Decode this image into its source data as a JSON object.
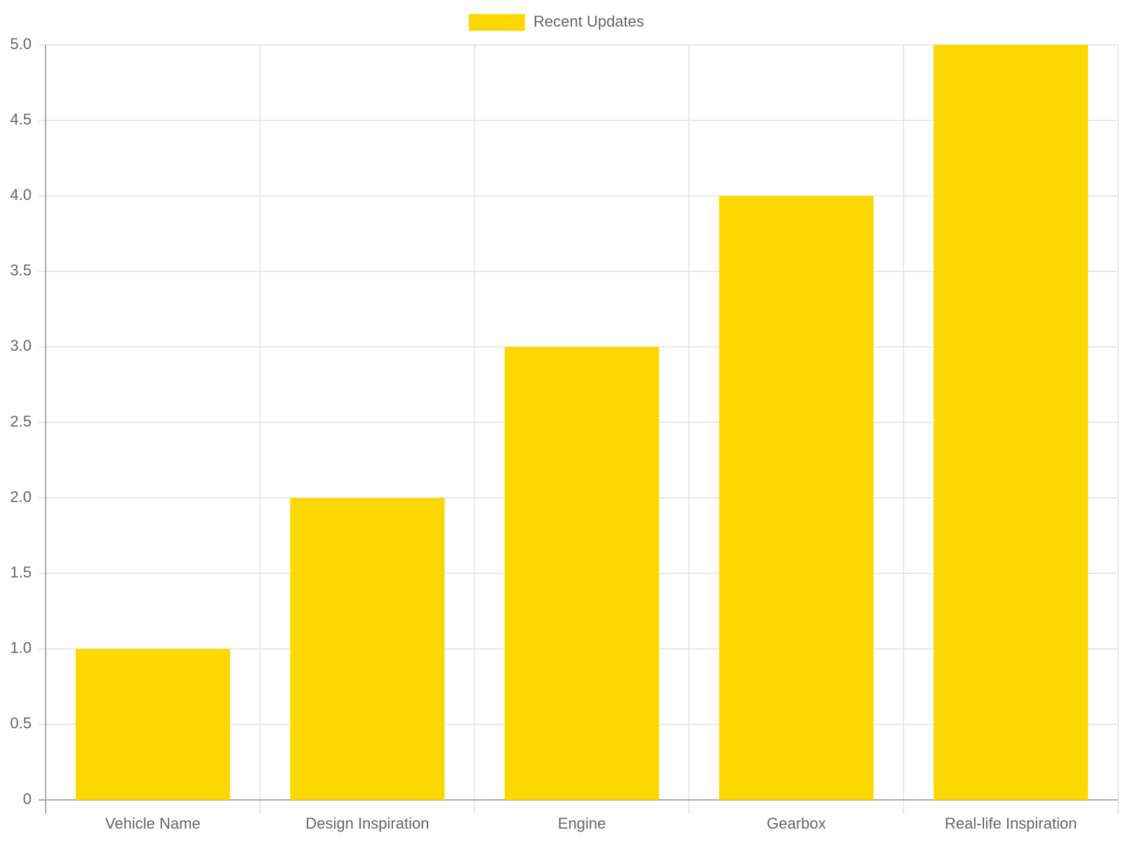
{
  "chart_data": {
    "type": "bar",
    "categories": [
      "Vehicle Name",
      "Design Inspiration",
      "Engine",
      "Gearbox",
      "Real-life Inspiration"
    ],
    "series": [
      {
        "name": "Recent Updates",
        "color": "#fdd700",
        "values": [
          1,
          2,
          3,
          4,
          5
        ]
      }
    ],
    "ylim": [
      0,
      5
    ],
    "yticks": [
      0,
      {
        "value": 0.5,
        "label": "0.5"
      },
      {
        "value": 1,
        "label": "1.0"
      },
      {
        "value": 1.5,
        "label": "1.5"
      },
      {
        "value": 2,
        "label": "2.0"
      },
      {
        "value": 2.5,
        "label": "2.5"
      },
      {
        "value": 3,
        "label": "3.0"
      },
      {
        "value": 3.5,
        "label": "3.5"
      },
      {
        "value": 4,
        "label": "4.0"
      },
      {
        "value": 4.5,
        "label": "4.5"
      },
      {
        "value": 5,
        "label": "5.0"
      }
    ],
    "grid": true,
    "legend": "top"
  }
}
